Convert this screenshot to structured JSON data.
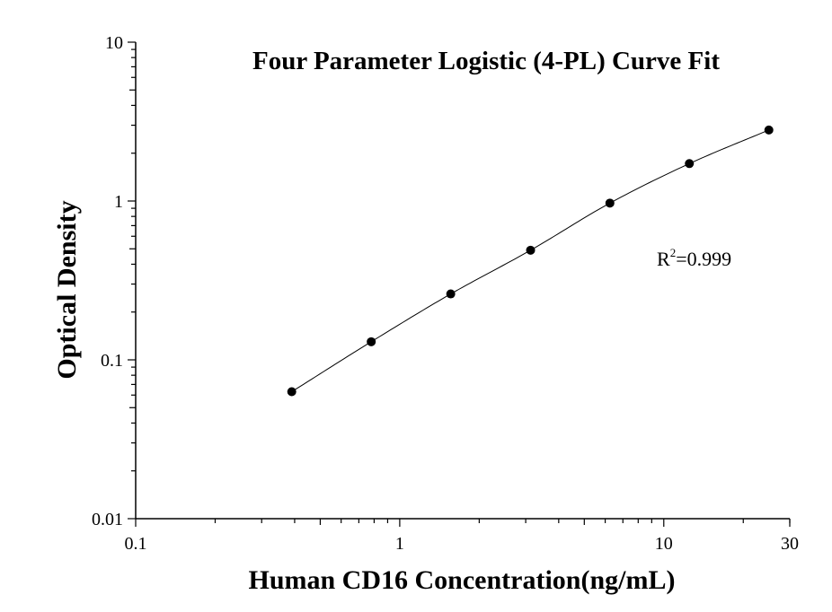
{
  "chart_data": {
    "type": "scatter",
    "title": "Four Parameter Logistic (4-PL) Curve Fit",
    "xlabel": "Human CD16 Concentration(ng/mL)",
    "ylabel": "Optical Density",
    "x_scale": "log",
    "y_scale": "log",
    "xlim": [
      0.1,
      30
    ],
    "ylim": [
      0.01,
      10
    ],
    "x_ticks": [
      "0.1",
      "1",
      "10",
      "30"
    ],
    "y_ticks": [
      "0.01",
      "0.1",
      "1",
      "10"
    ],
    "grid": false,
    "annotation": {
      "base": "R",
      "sup": "2",
      "rest": "=0.999"
    },
    "series": [
      {
        "x": [
          0.39,
          0.78,
          1.56,
          3.13,
          6.25,
          12.5,
          25
        ],
        "y": [
          0.063,
          0.13,
          0.26,
          0.49,
          0.97,
          1.72,
          2.8
        ]
      }
    ],
    "fit_curve": {
      "type": "4-PL",
      "color": "#000000"
    },
    "marker_color": "#000000"
  }
}
